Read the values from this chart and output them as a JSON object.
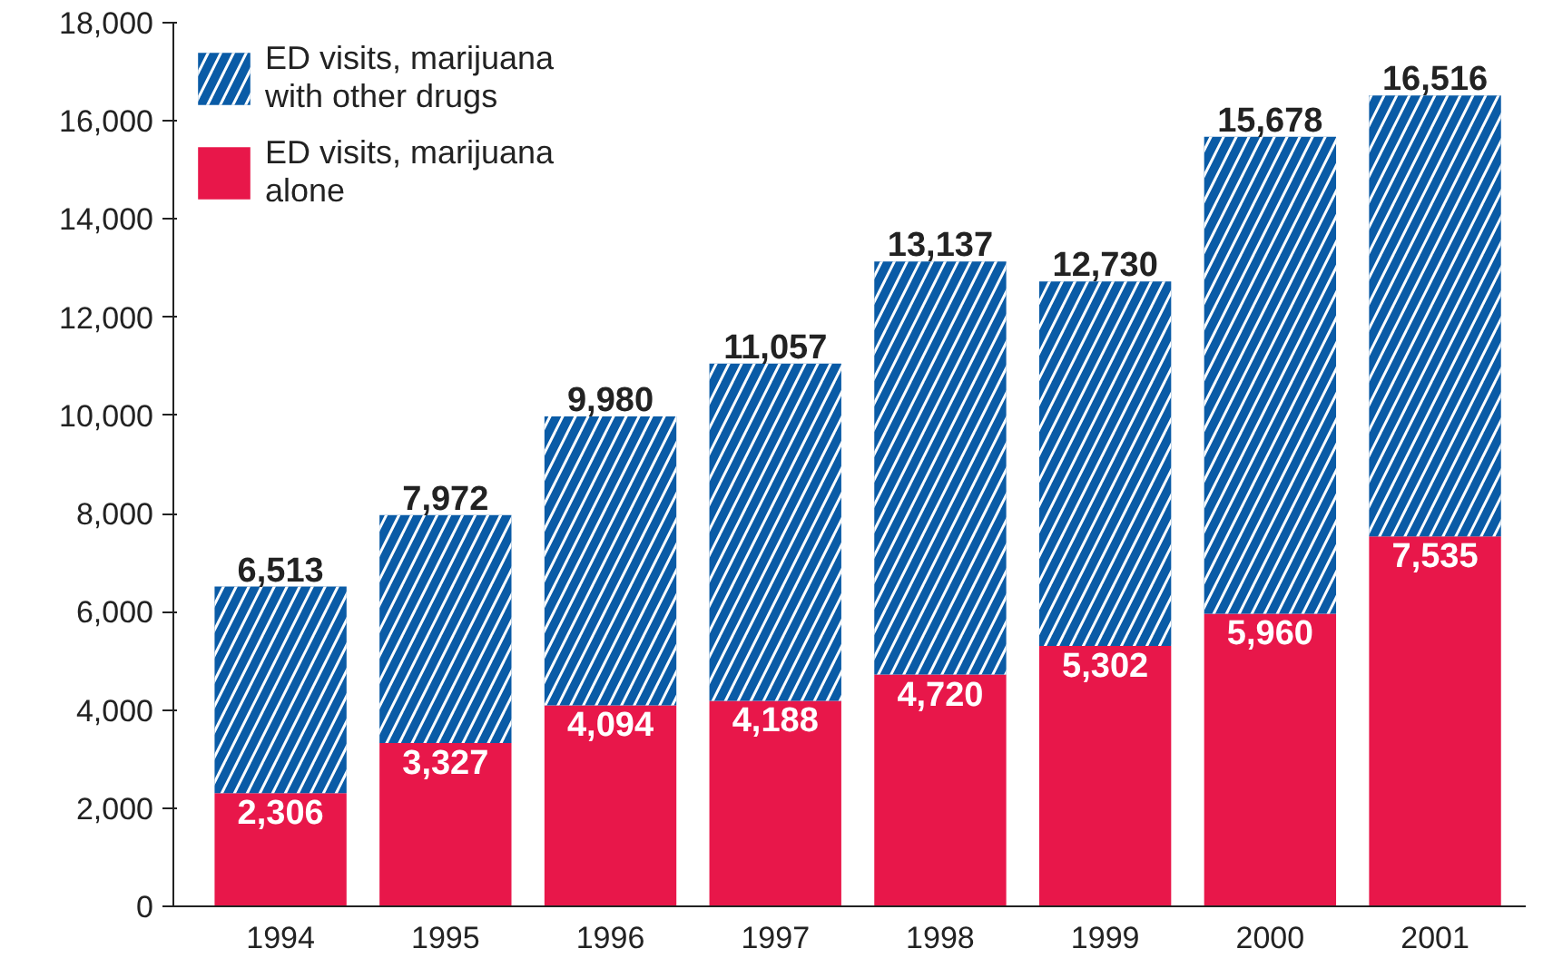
{
  "chart_data": {
    "type": "bar",
    "stacked": true,
    "categories": [
      "1994",
      "1995",
      "1996",
      "1997",
      "1998",
      "1999",
      "2000",
      "2001"
    ],
    "series": [
      {
        "name": "ED visits, marijuana alone",
        "color": "#e8174a",
        "values": [
          2306,
          3327,
          4094,
          4188,
          4720,
          5302,
          5960,
          7535
        ],
        "value_labels": [
          "2,306",
          "3,327",
          "4,094",
          "4,188",
          "4,720",
          "5,302",
          "5,960",
          "7,535"
        ]
      },
      {
        "name": "ED visits, marijuana with other drugs",
        "color": "#0a5ba6",
        "values": [
          4207,
          4645,
          5886,
          6869,
          8417,
          7428,
          9718,
          8981
        ]
      }
    ],
    "totals": [
      "6,513",
      "7,972",
      "9,980",
      "11,057",
      "13,137",
      "12,730",
      "15,678",
      "16,516"
    ],
    "ylim": [
      0,
      18000
    ],
    "yticks": [
      {
        "value": 0,
        "label": "0"
      },
      {
        "value": 2000,
        "label": "2,000"
      },
      {
        "value": 4000,
        "label": "4,000"
      },
      {
        "value": 6000,
        "label": "6,000"
      },
      {
        "value": 8000,
        "label": "8,000"
      },
      {
        "value": 10000,
        "label": "10,000"
      },
      {
        "value": 12000,
        "label": "12,000"
      },
      {
        "value": 14000,
        "label": "14,000"
      },
      {
        "value": 16000,
        "label": "16,000"
      },
      {
        "value": 18000,
        "label": "18,000"
      }
    ],
    "grid": false,
    "legend": "top left"
  }
}
